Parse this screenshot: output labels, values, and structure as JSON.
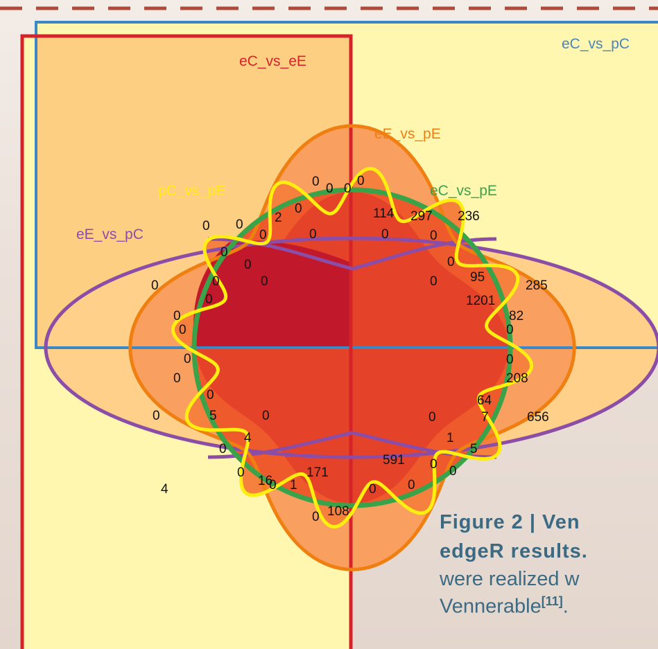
{
  "diagram": {
    "set_labels": {
      "eC_vs_pC": "eC_vs_pC",
      "eC_vs_eE": "eC_vs_eE",
      "eE_vs_pE": "eE_vs_pE",
      "pC_vs_pE": "pC_vs_pE",
      "eC_vs_pE": "eC_vs_pE",
      "eE_vs_pC": "eE_vs_pC"
    },
    "colors": {
      "eC_vs_pC": "#3b88c4",
      "eC_vs_eE": "#d6232a",
      "eE_vs_pE": "#f07f12",
      "pC_vs_pE": "#ffee10",
      "eC_vs_pE": "#3aa34a",
      "eE_vs_pC": "#8b4da6",
      "dashed_border": "#b04a3a"
    },
    "region_counts": [
      "0",
      "0",
      "0",
      "0",
      "114",
      "297",
      "236",
      "0",
      "0",
      "2",
      "0",
      "0",
      "0",
      "0",
      "0",
      "0",
      "0",
      "0",
      "0",
      "0",
      "0",
      "95",
      "285",
      "0",
      "0",
      "1201",
      "0",
      "82",
      "0",
      "0",
      "0",
      "0",
      "208",
      "0",
      "0",
      "656",
      "64",
      "7",
      "5",
      "4",
      "0",
      "0",
      "1",
      "5",
      "0",
      "0",
      "0",
      "16",
      "0",
      "1",
      "171",
      "591",
      "0",
      "0",
      "4",
      "0",
      "0",
      "0",
      "108"
    ]
  },
  "caption": {
    "line1": "Figure 2 | Ven",
    "line2_bold": "edgeR results.",
    "line3": "were realized w",
    "line4_text": "Vennerable",
    "line4_sup": "[11]",
    "line4_tail": "."
  }
}
